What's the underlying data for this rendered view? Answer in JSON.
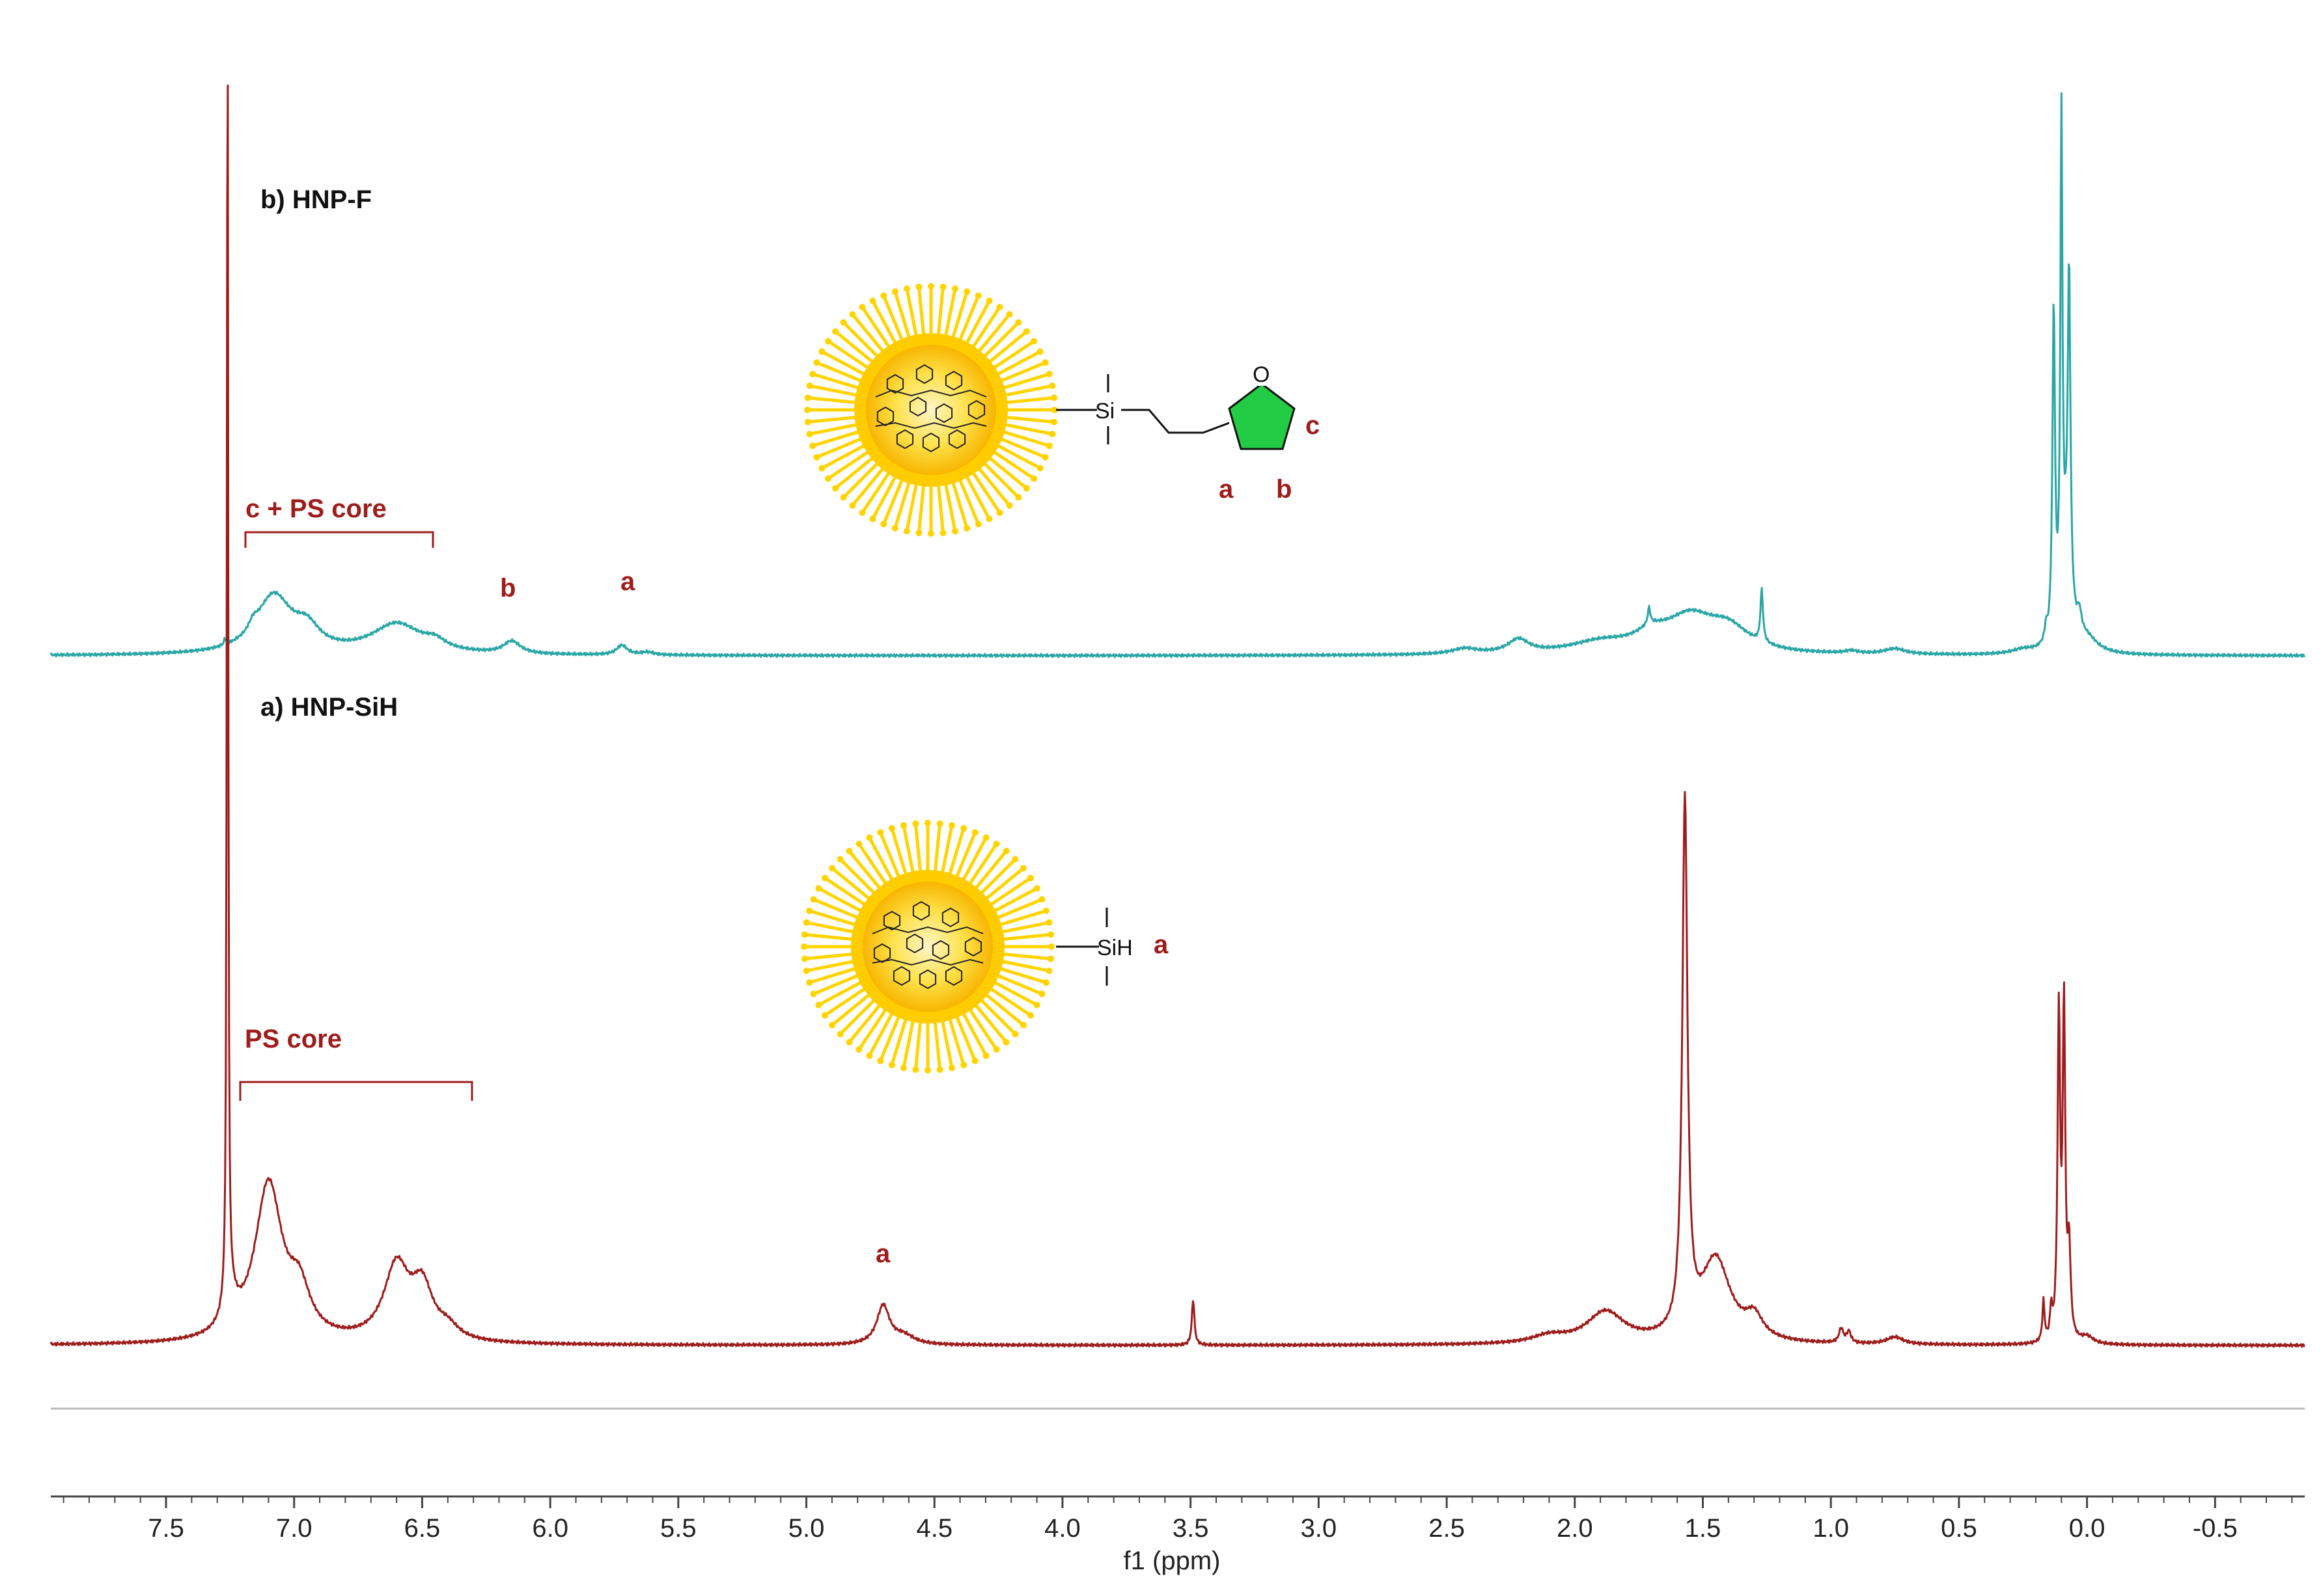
{
  "colors": {
    "spectrum_a": "#9e1c1c",
    "spectrum_b": "#2aa6a6",
    "annotation": "#9e1c1c",
    "axis": "#444444",
    "separator": "#bbbbbb",
    "sun_outer": "#ffd400",
    "sun_core": "#f7b500",
    "furan": "#22cc44"
  },
  "chart_data": {
    "type": "line",
    "title": "",
    "xlabel": "f1 (ppm)",
    "ylabel": "",
    "xlim": [
      7.95,
      -0.85
    ],
    "x_reversed": true,
    "grid": false,
    "ticks": [
      "7.5",
      "7.0",
      "6.5",
      "6.0",
      "5.5",
      "5.0",
      "4.5",
      "4.0",
      "3.5",
      "3.0",
      "2.5",
      "2.0",
      "1.5",
      "1.0",
      "0.5",
      "0.0",
      "-0.5"
    ],
    "series": [
      {
        "name": "b) HNP-F",
        "color": "#2aa6a6",
        "baseline_note": "upper trace",
        "peaks": [
          {
            "ppm": 7.27,
            "h": 0.05,
            "w": 0.004
          },
          {
            "ppm": 7.16,
            "h": 0.06,
            "w": 0.02
          },
          {
            "ppm": 7.08,
            "h": 0.42,
            "w": 0.085
          },
          {
            "ppm": 6.95,
            "h": 0.15,
            "w": 0.06
          },
          {
            "ppm": 6.6,
            "h": 0.22,
            "w": 0.12
          },
          {
            "ppm": 6.45,
            "h": 0.06,
            "w": 0.05
          },
          {
            "ppm": 6.15,
            "h": 0.09,
            "w": 0.04
          },
          {
            "ppm": 5.72,
            "h": 0.07,
            "w": 0.025
          },
          {
            "ppm": 5.62,
            "h": 0.02,
            "w": 0.03
          },
          {
            "ppm": 2.43,
            "h": 0.04,
            "w": 0.06
          },
          {
            "ppm": 2.22,
            "h": 0.1,
            "w": 0.05
          },
          {
            "ppm": 1.9,
            "h": 0.08,
            "w": 0.15
          },
          {
            "ppm": 1.7,
            "h": 0.1,
            "w": 0.08
          },
          {
            "ppm": 1.71,
            "h": 0.12,
            "w": 0.006
          },
          {
            "ppm": 1.55,
            "h": 0.25,
            "w": 0.12
          },
          {
            "ppm": 1.4,
            "h": 0.16,
            "w": 0.1
          },
          {
            "ppm": 1.27,
            "h": 0.38,
            "w": 0.006
          },
          {
            "ppm": 0.92,
            "h": 0.02,
            "w": 0.03
          },
          {
            "ppm": 0.75,
            "h": 0.04,
            "w": 0.05
          },
          {
            "ppm": 0.25,
            "h": 0.03,
            "w": 0.05
          },
          {
            "ppm": 0.16,
            "h": 0.1,
            "w": 0.006
          },
          {
            "ppm": 0.13,
            "h": 2.4,
            "w": 0.006
          },
          {
            "ppm": 0.1,
            "h": 3.6,
            "w": 0.005
          },
          {
            "ppm": 0.08,
            "h": 0.6,
            "w": 0.02
          },
          {
            "ppm": 0.07,
            "h": 2.3,
            "w": 0.006
          },
          {
            "ppm": 0.03,
            "h": 0.15,
            "w": 0.01
          },
          {
            "ppm": 0.0,
            "h": 0.1,
            "w": 0.05
          }
        ]
      },
      {
        "name": "a) HNP-SiH",
        "color": "#9e1c1c",
        "baseline_note": "lower trace",
        "peaks": [
          {
            "ppm": 7.26,
            "h": 9.5,
            "w": 0.003
          },
          {
            "ppm": 7.25,
            "h": 0.2,
            "w": 0.03
          },
          {
            "ppm": 7.1,
            "h": 1.1,
            "w": 0.065
          },
          {
            "ppm": 6.98,
            "h": 0.3,
            "w": 0.05
          },
          {
            "ppm": 6.6,
            "h": 0.52,
            "w": 0.06
          },
          {
            "ppm": 6.5,
            "h": 0.35,
            "w": 0.05
          },
          {
            "ppm": 6.4,
            "h": 0.08,
            "w": 0.05
          },
          {
            "ppm": 4.7,
            "h": 0.27,
            "w": 0.03
          },
          {
            "ppm": 4.62,
            "h": 0.06,
            "w": 0.05
          },
          {
            "ppm": 3.49,
            "h": 0.32,
            "w": 0.006
          },
          {
            "ppm": 2.1,
            "h": 0.05,
            "w": 0.08
          },
          {
            "ppm": 1.88,
            "h": 0.22,
            "w": 0.09
          },
          {
            "ppm": 1.57,
            "h": 3.7,
            "w": 0.012
          },
          {
            "ppm": 1.45,
            "h": 0.58,
            "w": 0.07
          },
          {
            "ppm": 1.3,
            "h": 0.15,
            "w": 0.04
          },
          {
            "ppm": 0.96,
            "h": 0.1,
            "w": 0.01
          },
          {
            "ppm": 0.93,
            "h": 0.08,
            "w": 0.01
          },
          {
            "ppm": 0.75,
            "h": 0.05,
            "w": 0.04
          },
          {
            "ppm": 0.17,
            "h": 0.28,
            "w": 0.005
          },
          {
            "ppm": 0.14,
            "h": 0.2,
            "w": 0.005
          },
          {
            "ppm": 0.11,
            "h": 2.25,
            "w": 0.006
          },
          {
            "ppm": 0.09,
            "h": 2.3,
            "w": 0.006
          },
          {
            "ppm": 0.07,
            "h": 0.6,
            "w": 0.007
          },
          {
            "ppm": 0.0,
            "h": 0.05,
            "w": 0.03
          }
        ]
      }
    ]
  },
  "labels": {
    "spectrum_b": "b) HNP-F",
    "spectrum_a": "a) HNP-SiH",
    "b_bracket": "c + PS core",
    "a_bracket": "PS core",
    "b_peak_b": "b",
    "b_peak_a": "a",
    "a_peak_a": "a"
  },
  "structures": {
    "top": {
      "atom_si": "Si",
      "atom_o": "O",
      "label_a": "a",
      "label_b": "b",
      "label_c": "c"
    },
    "bottom": {
      "atom_sih": "SiH",
      "label_a": "a"
    }
  }
}
